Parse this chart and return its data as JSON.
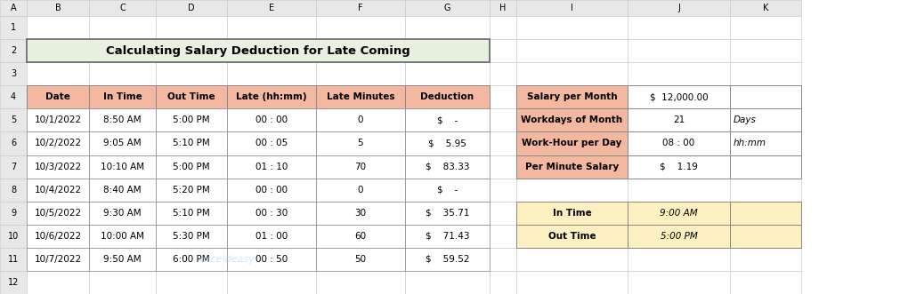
{
  "title": "Calculating Salary Deduction for Late Coming",
  "title_bg": "#e8f0e0",
  "title_border": "#444444",
  "main_table": {
    "headers": [
      "Date",
      "In Time",
      "Out Time",
      "Late (hh:mm)",
      "Late Minutes",
      "Deduction"
    ],
    "header_bg": "#f4b8a0",
    "row_bg": "#ffffff",
    "border_color": "#aaaaaa",
    "rows": [
      [
        "10/1/2022",
        "8:50 AM",
        "5:00 PM",
        "00 : 00",
        "0",
        "$    -"
      ],
      [
        "10/2/2022",
        "9:05 AM",
        "5:10 PM",
        "00 : 05",
        "5",
        "$    5.95"
      ],
      [
        "10/3/2022",
        "10:10 AM",
        "5:00 PM",
        "01 : 10",
        "70",
        "$    83.33"
      ],
      [
        "10/4/2022",
        "8:40 AM",
        "5:20 PM",
        "00 : 00",
        "0",
        "$    -"
      ],
      [
        "10/5/2022",
        "9:30 AM",
        "5:10 PM",
        "00 : 30",
        "30",
        "$    35.71"
      ],
      [
        "10/6/2022",
        "10:00 AM",
        "5:30 PM",
        "01 : 00",
        "60",
        "$    71.43"
      ],
      [
        "10/7/2022",
        "9:50 AM",
        "6:00 PM",
        "00 : 50",
        "50",
        "$    59.52"
      ]
    ]
  },
  "side_table1": {
    "header_bg": "#f4b8a0",
    "row_bg": "#ffffff",
    "border_color": "#aaaaaa",
    "rows": [
      [
        "Salary per Month",
        "$  12,000.00",
        ""
      ],
      [
        "Workdays of Month",
        "21",
        "Days"
      ],
      [
        "Work-Hour per Day",
        "08 : 00",
        "hh:mm"
      ],
      [
        "Per Minute Salary",
        "$    1.19",
        ""
      ]
    ]
  },
  "side_table2": {
    "header_bg": "#fdf0c0",
    "row_bg": "#fdf0c0",
    "border_color": "#aaaaaa",
    "rows": [
      [
        "In Time",
        "9:00 AM",
        ""
      ],
      [
        "Out Time",
        "5:00 PM",
        ""
      ]
    ]
  },
  "col_letters": [
    "A",
    "B",
    "C",
    "D",
    "E",
    "F",
    "G",
    "H",
    "I",
    "J",
    "K"
  ],
  "row_numbers": [
    "1",
    "2",
    "3",
    "4",
    "5",
    "6",
    "7",
    "8",
    "9",
    "10",
    "11",
    "12"
  ],
  "grid_color": "#cccccc",
  "header_row_col_bg": "#e8e8e8",
  "watermark": "exceldeasy"
}
